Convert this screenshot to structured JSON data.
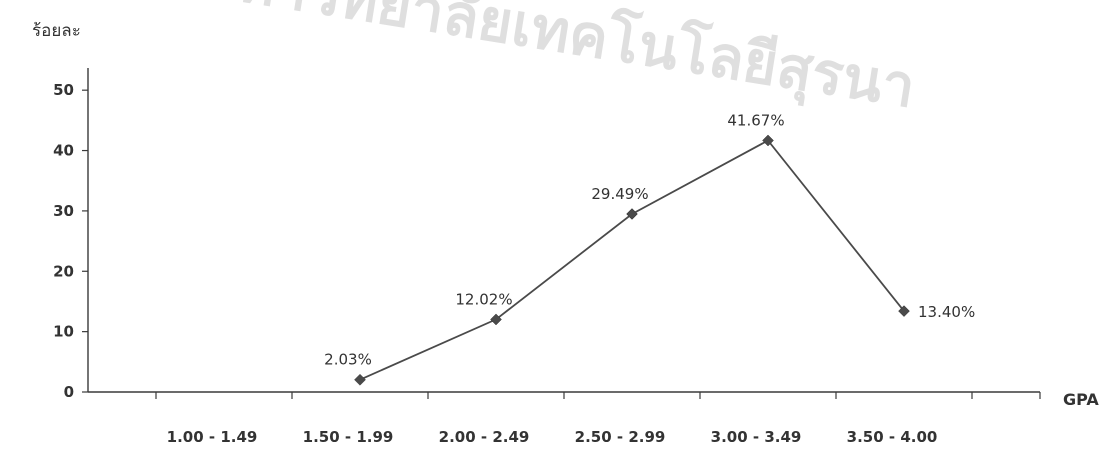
{
  "chart_data": {
    "type": "line",
    "xlabel": "GPA",
    "ylabel": "ร้อยละ",
    "categories": [
      "1.00 - 1.49",
      "1.50 - 1.99",
      "2.00 - 2.49",
      "2.50 - 2.99",
      "3.00 - 3.49",
      "3.50 - 4.00"
    ],
    "yticks": [
      0,
      10,
      20,
      30,
      40,
      50
    ],
    "ylim": [
      0,
      55
    ],
    "grid": false,
    "series": [
      {
        "values": [
          null,
          2.03,
          12.02,
          29.49,
          41.67,
          13.4
        ],
        "labels": [
          null,
          "2.03%",
          "12.02%",
          "29.49%",
          "41.67%",
          "13.40%"
        ]
      }
    ],
    "colors": {
      "line": "#4a4a4a",
      "axis": "#3a3a3a",
      "text": "#333333"
    }
  },
  "watermark": {
    "text": "ทาวิทยาลัยเทคโนโลยีสุรนา"
  }
}
